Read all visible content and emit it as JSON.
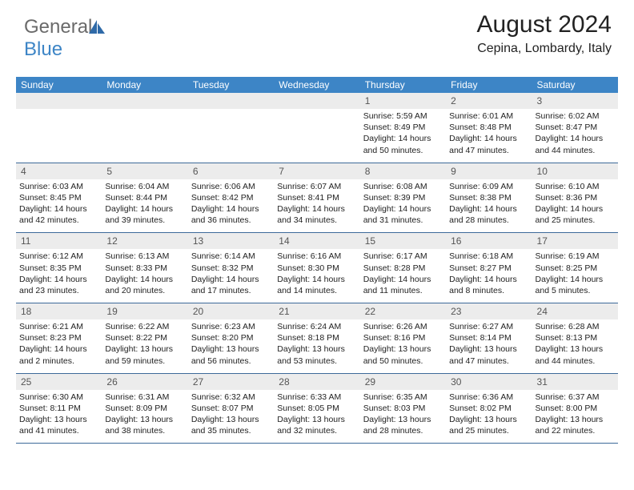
{
  "logo": {
    "text_gray": "General",
    "text_blue": "Blue"
  },
  "header": {
    "month_title": "August 2024",
    "location": "Cepina, Lombardy, Italy"
  },
  "colors": {
    "header_bar": "#3d85c6",
    "header_text": "#ffffff",
    "daynum_bg": "#ececec",
    "row_border": "#3d6a99",
    "body_text": "#222222",
    "logo_gray": "#6a6a6a"
  },
  "days_of_week": [
    "Sunday",
    "Monday",
    "Tuesday",
    "Wednesday",
    "Thursday",
    "Friday",
    "Saturday"
  ],
  "weeks": [
    [
      null,
      null,
      null,
      null,
      {
        "n": "1",
        "sr": "5:59 AM",
        "ss": "8:49 PM",
        "dl": "14 hours and 50 minutes."
      },
      {
        "n": "2",
        "sr": "6:01 AM",
        "ss": "8:48 PM",
        "dl": "14 hours and 47 minutes."
      },
      {
        "n": "3",
        "sr": "6:02 AM",
        "ss": "8:47 PM",
        "dl": "14 hours and 44 minutes."
      }
    ],
    [
      {
        "n": "4",
        "sr": "6:03 AM",
        "ss": "8:45 PM",
        "dl": "14 hours and 42 minutes."
      },
      {
        "n": "5",
        "sr": "6:04 AM",
        "ss": "8:44 PM",
        "dl": "14 hours and 39 minutes."
      },
      {
        "n": "6",
        "sr": "6:06 AM",
        "ss": "8:42 PM",
        "dl": "14 hours and 36 minutes."
      },
      {
        "n": "7",
        "sr": "6:07 AM",
        "ss": "8:41 PM",
        "dl": "14 hours and 34 minutes."
      },
      {
        "n": "8",
        "sr": "6:08 AM",
        "ss": "8:39 PM",
        "dl": "14 hours and 31 minutes."
      },
      {
        "n": "9",
        "sr": "6:09 AM",
        "ss": "8:38 PM",
        "dl": "14 hours and 28 minutes."
      },
      {
        "n": "10",
        "sr": "6:10 AM",
        "ss": "8:36 PM",
        "dl": "14 hours and 25 minutes."
      }
    ],
    [
      {
        "n": "11",
        "sr": "6:12 AM",
        "ss": "8:35 PM",
        "dl": "14 hours and 23 minutes."
      },
      {
        "n": "12",
        "sr": "6:13 AM",
        "ss": "8:33 PM",
        "dl": "14 hours and 20 minutes."
      },
      {
        "n": "13",
        "sr": "6:14 AM",
        "ss": "8:32 PM",
        "dl": "14 hours and 17 minutes."
      },
      {
        "n": "14",
        "sr": "6:16 AM",
        "ss": "8:30 PM",
        "dl": "14 hours and 14 minutes."
      },
      {
        "n": "15",
        "sr": "6:17 AM",
        "ss": "8:28 PM",
        "dl": "14 hours and 11 minutes."
      },
      {
        "n": "16",
        "sr": "6:18 AM",
        "ss": "8:27 PM",
        "dl": "14 hours and 8 minutes."
      },
      {
        "n": "17",
        "sr": "6:19 AM",
        "ss": "8:25 PM",
        "dl": "14 hours and 5 minutes."
      }
    ],
    [
      {
        "n": "18",
        "sr": "6:21 AM",
        "ss": "8:23 PM",
        "dl": "14 hours and 2 minutes."
      },
      {
        "n": "19",
        "sr": "6:22 AM",
        "ss": "8:22 PM",
        "dl": "13 hours and 59 minutes."
      },
      {
        "n": "20",
        "sr": "6:23 AM",
        "ss": "8:20 PM",
        "dl": "13 hours and 56 minutes."
      },
      {
        "n": "21",
        "sr": "6:24 AM",
        "ss": "8:18 PM",
        "dl": "13 hours and 53 minutes."
      },
      {
        "n": "22",
        "sr": "6:26 AM",
        "ss": "8:16 PM",
        "dl": "13 hours and 50 minutes."
      },
      {
        "n": "23",
        "sr": "6:27 AM",
        "ss": "8:14 PM",
        "dl": "13 hours and 47 minutes."
      },
      {
        "n": "24",
        "sr": "6:28 AM",
        "ss": "8:13 PM",
        "dl": "13 hours and 44 minutes."
      }
    ],
    [
      {
        "n": "25",
        "sr": "6:30 AM",
        "ss": "8:11 PM",
        "dl": "13 hours and 41 minutes."
      },
      {
        "n": "26",
        "sr": "6:31 AM",
        "ss": "8:09 PM",
        "dl": "13 hours and 38 minutes."
      },
      {
        "n": "27",
        "sr": "6:32 AM",
        "ss": "8:07 PM",
        "dl": "13 hours and 35 minutes."
      },
      {
        "n": "28",
        "sr": "6:33 AM",
        "ss": "8:05 PM",
        "dl": "13 hours and 32 minutes."
      },
      {
        "n": "29",
        "sr": "6:35 AM",
        "ss": "8:03 PM",
        "dl": "13 hours and 28 minutes."
      },
      {
        "n": "30",
        "sr": "6:36 AM",
        "ss": "8:02 PM",
        "dl": "13 hours and 25 minutes."
      },
      {
        "n": "31",
        "sr": "6:37 AM",
        "ss": "8:00 PM",
        "dl": "13 hours and 22 minutes."
      }
    ]
  ],
  "labels": {
    "sunrise_prefix": "Sunrise: ",
    "sunset_prefix": "Sunset: ",
    "daylight_prefix": "Daylight: "
  }
}
